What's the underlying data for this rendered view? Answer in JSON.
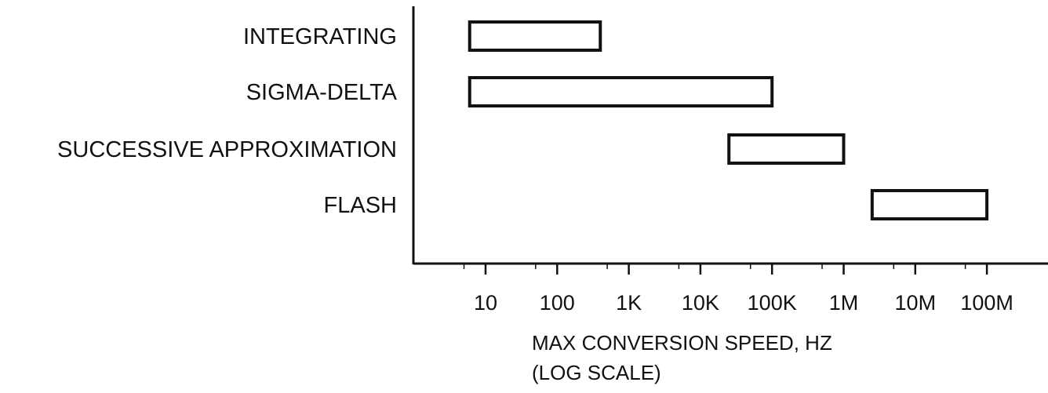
{
  "chart_data": {
    "type": "range-bar",
    "orientation": "horizontal",
    "categories": [
      "INTEGRATING",
      "SIGMA-DELTA",
      "SUCCESSIVE APPROXIMATION",
      "FLASH"
    ],
    "ranges": [
      {
        "category": "INTEGRATING",
        "min_hz": 6,
        "max_hz": 400
      },
      {
        "category": "SIGMA-DELTA",
        "min_hz": 6,
        "max_hz": 100000
      },
      {
        "category": "SUCCESSIVE APPROXIMATION",
        "min_hz": 25000,
        "max_hz": 1000000
      },
      {
        "category": "FLASH",
        "min_hz": 2500000,
        "max_hz": 100000000
      }
    ],
    "x_axis": {
      "scale": "log",
      "tick_values": [
        10,
        100,
        1000,
        10000,
        100000,
        1000000,
        10000000,
        100000000
      ],
      "tick_labels": [
        "10",
        "100",
        "1K",
        "10K",
        "100K",
        "1M",
        "10M",
        "100M"
      ],
      "label_line1": "MAX CONVERSION SPEED, HZ",
      "label_line2": "(LOG SCALE)"
    },
    "grid": false,
    "legend": false
  },
  "colors": {
    "ink": "#111111",
    "bar_fill": "#ffffff",
    "background": "#ffffff"
  }
}
